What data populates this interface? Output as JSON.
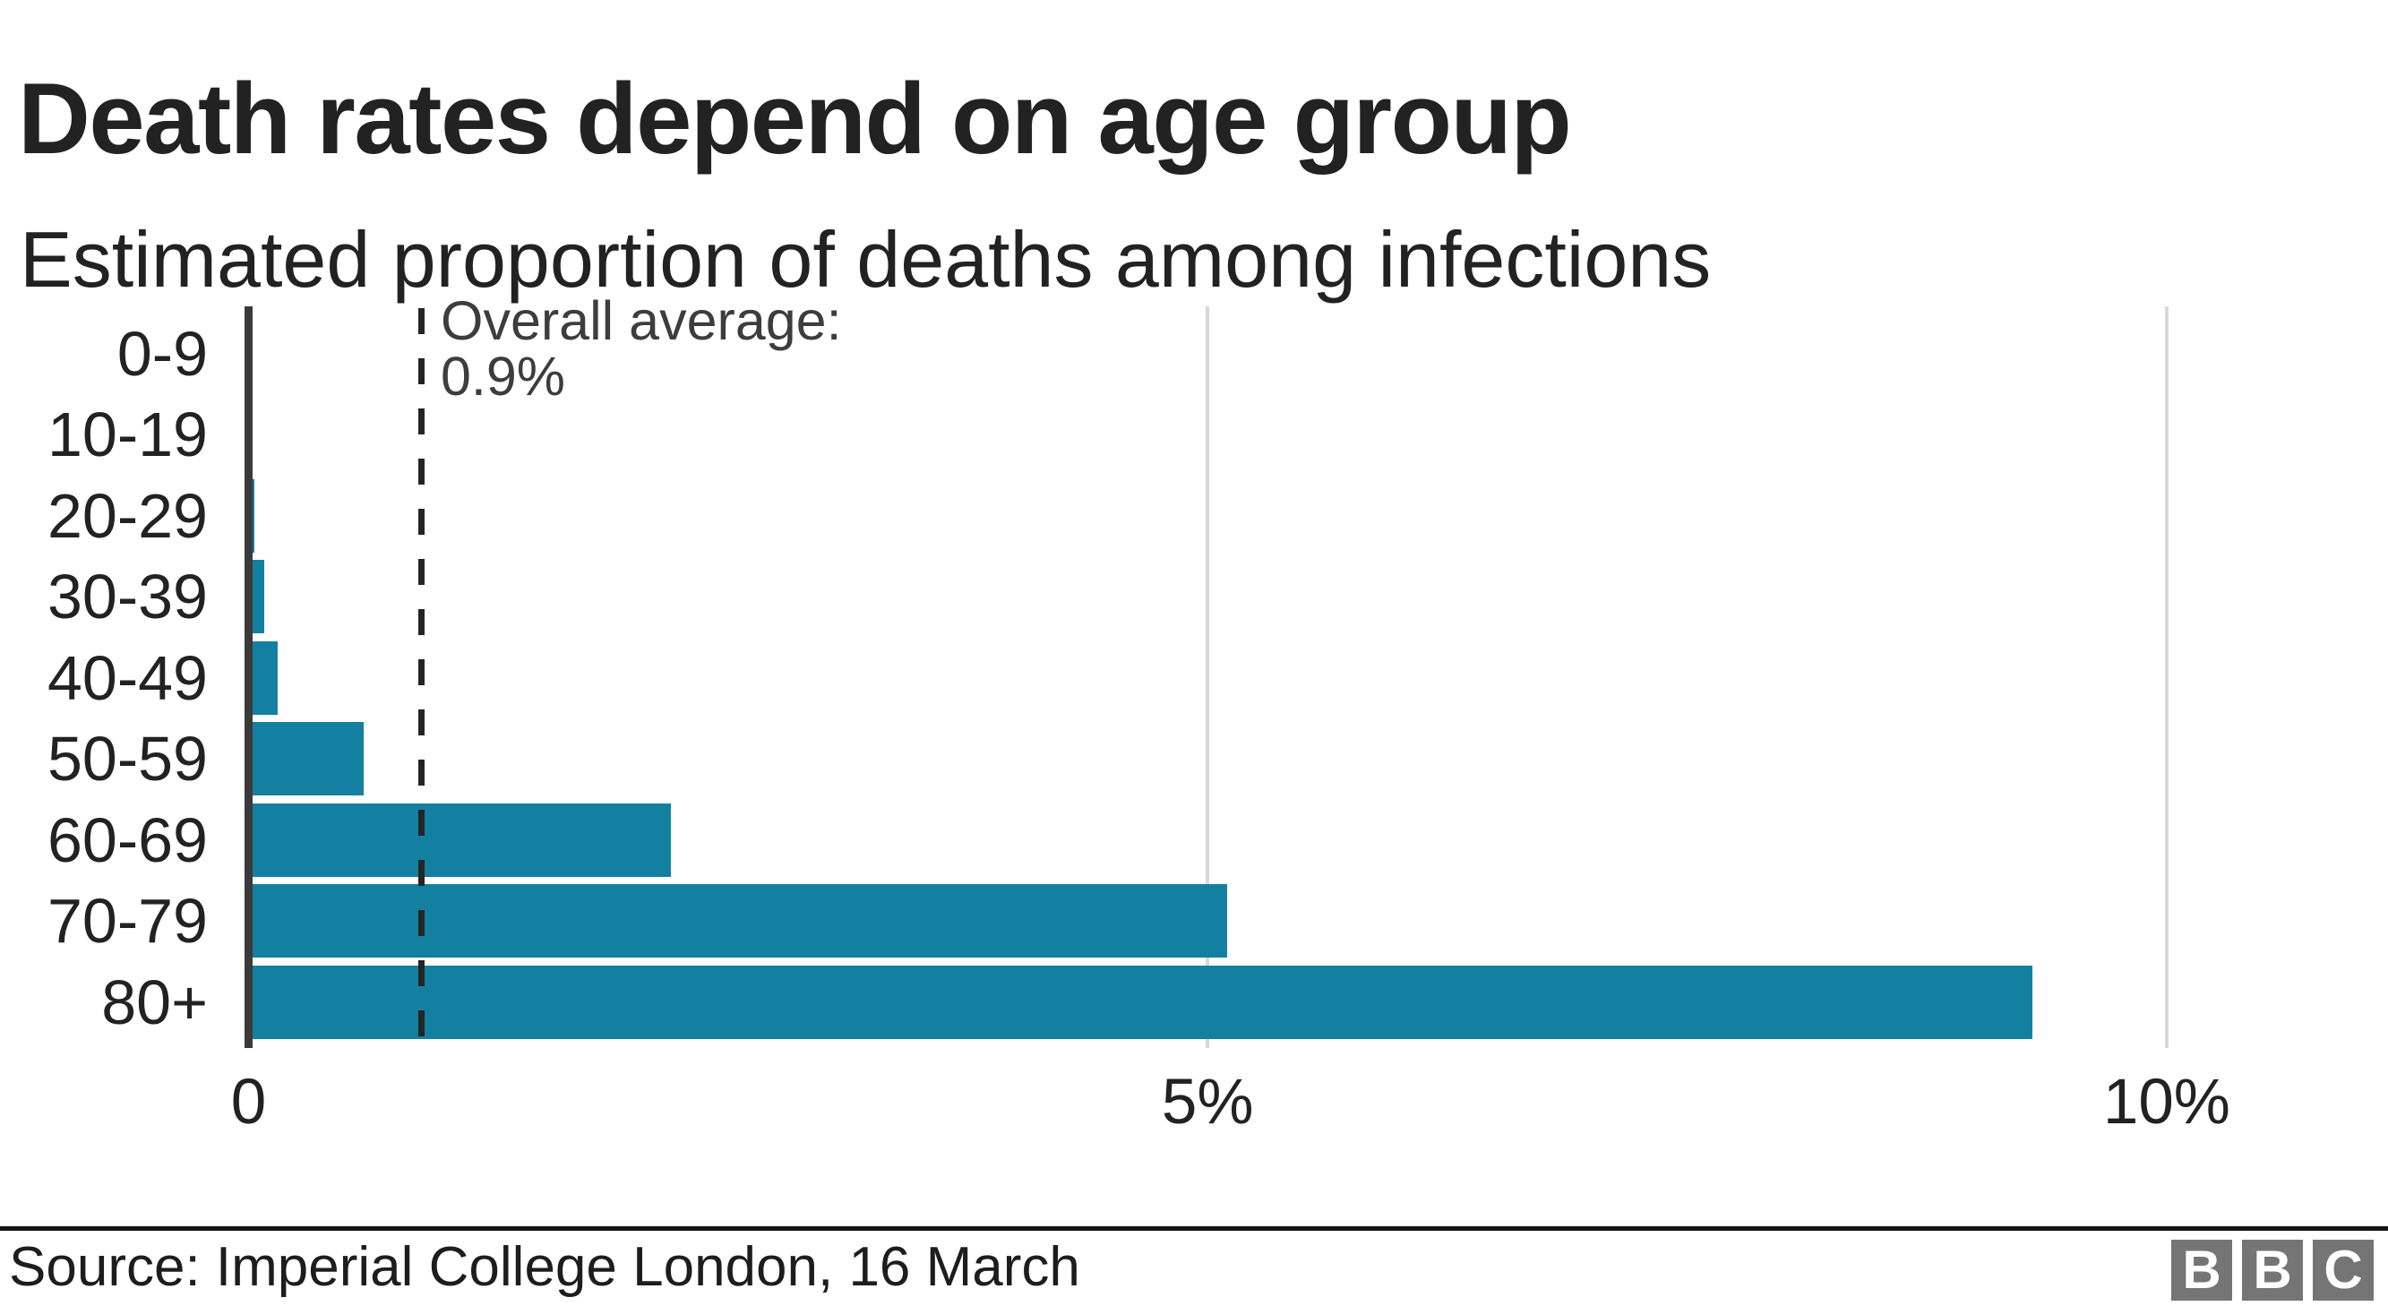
{
  "header": {
    "title": "Death rates depend on age group",
    "subtitle": "Estimated proportion of deaths among infections"
  },
  "chart_data": {
    "type": "bar",
    "orientation": "horizontal",
    "title": "Death rates depend on age group",
    "subtitle": "Estimated proportion of deaths among infections",
    "categories": [
      "0-9",
      "10-19",
      "20-29",
      "30-39",
      "40-49",
      "50-59",
      "60-69",
      "70-79",
      "80+"
    ],
    "values": [
      0.002,
      0.006,
      0.03,
      0.08,
      0.15,
      0.6,
      2.2,
      5.1,
      9.3
    ],
    "unit": "%",
    "xlabel": "",
    "ylabel": "",
    "xlim": [
      0,
      10.7
    ],
    "grid": "vertical-gridlines-at-5-and-10",
    "legend": "none",
    "x_ticks": [
      {
        "value": 0,
        "label": "0"
      },
      {
        "value": 5,
        "label": "5%"
      },
      {
        "value": 10,
        "label": "10%"
      }
    ],
    "annotation": {
      "label_line1": "Overall average:",
      "label_line2": "0.9%",
      "value": 0.9,
      "style": "vertical-dashed-line"
    },
    "colors": {
      "bar": "#1380a1",
      "axis": "#3a3a3a",
      "gridline": "#d8d8d8",
      "dashed_line": "#242424",
      "text": "#222222",
      "annotation_text": "#3d3d3d"
    }
  },
  "footer": {
    "source": "Source: Imperial College London, 16 March",
    "rule_color": "#141414",
    "logo": {
      "name": "BBC",
      "letters": [
        "B",
        "B",
        "C"
      ],
      "square_color": "#757575",
      "letter_color": "#ffffff"
    }
  }
}
